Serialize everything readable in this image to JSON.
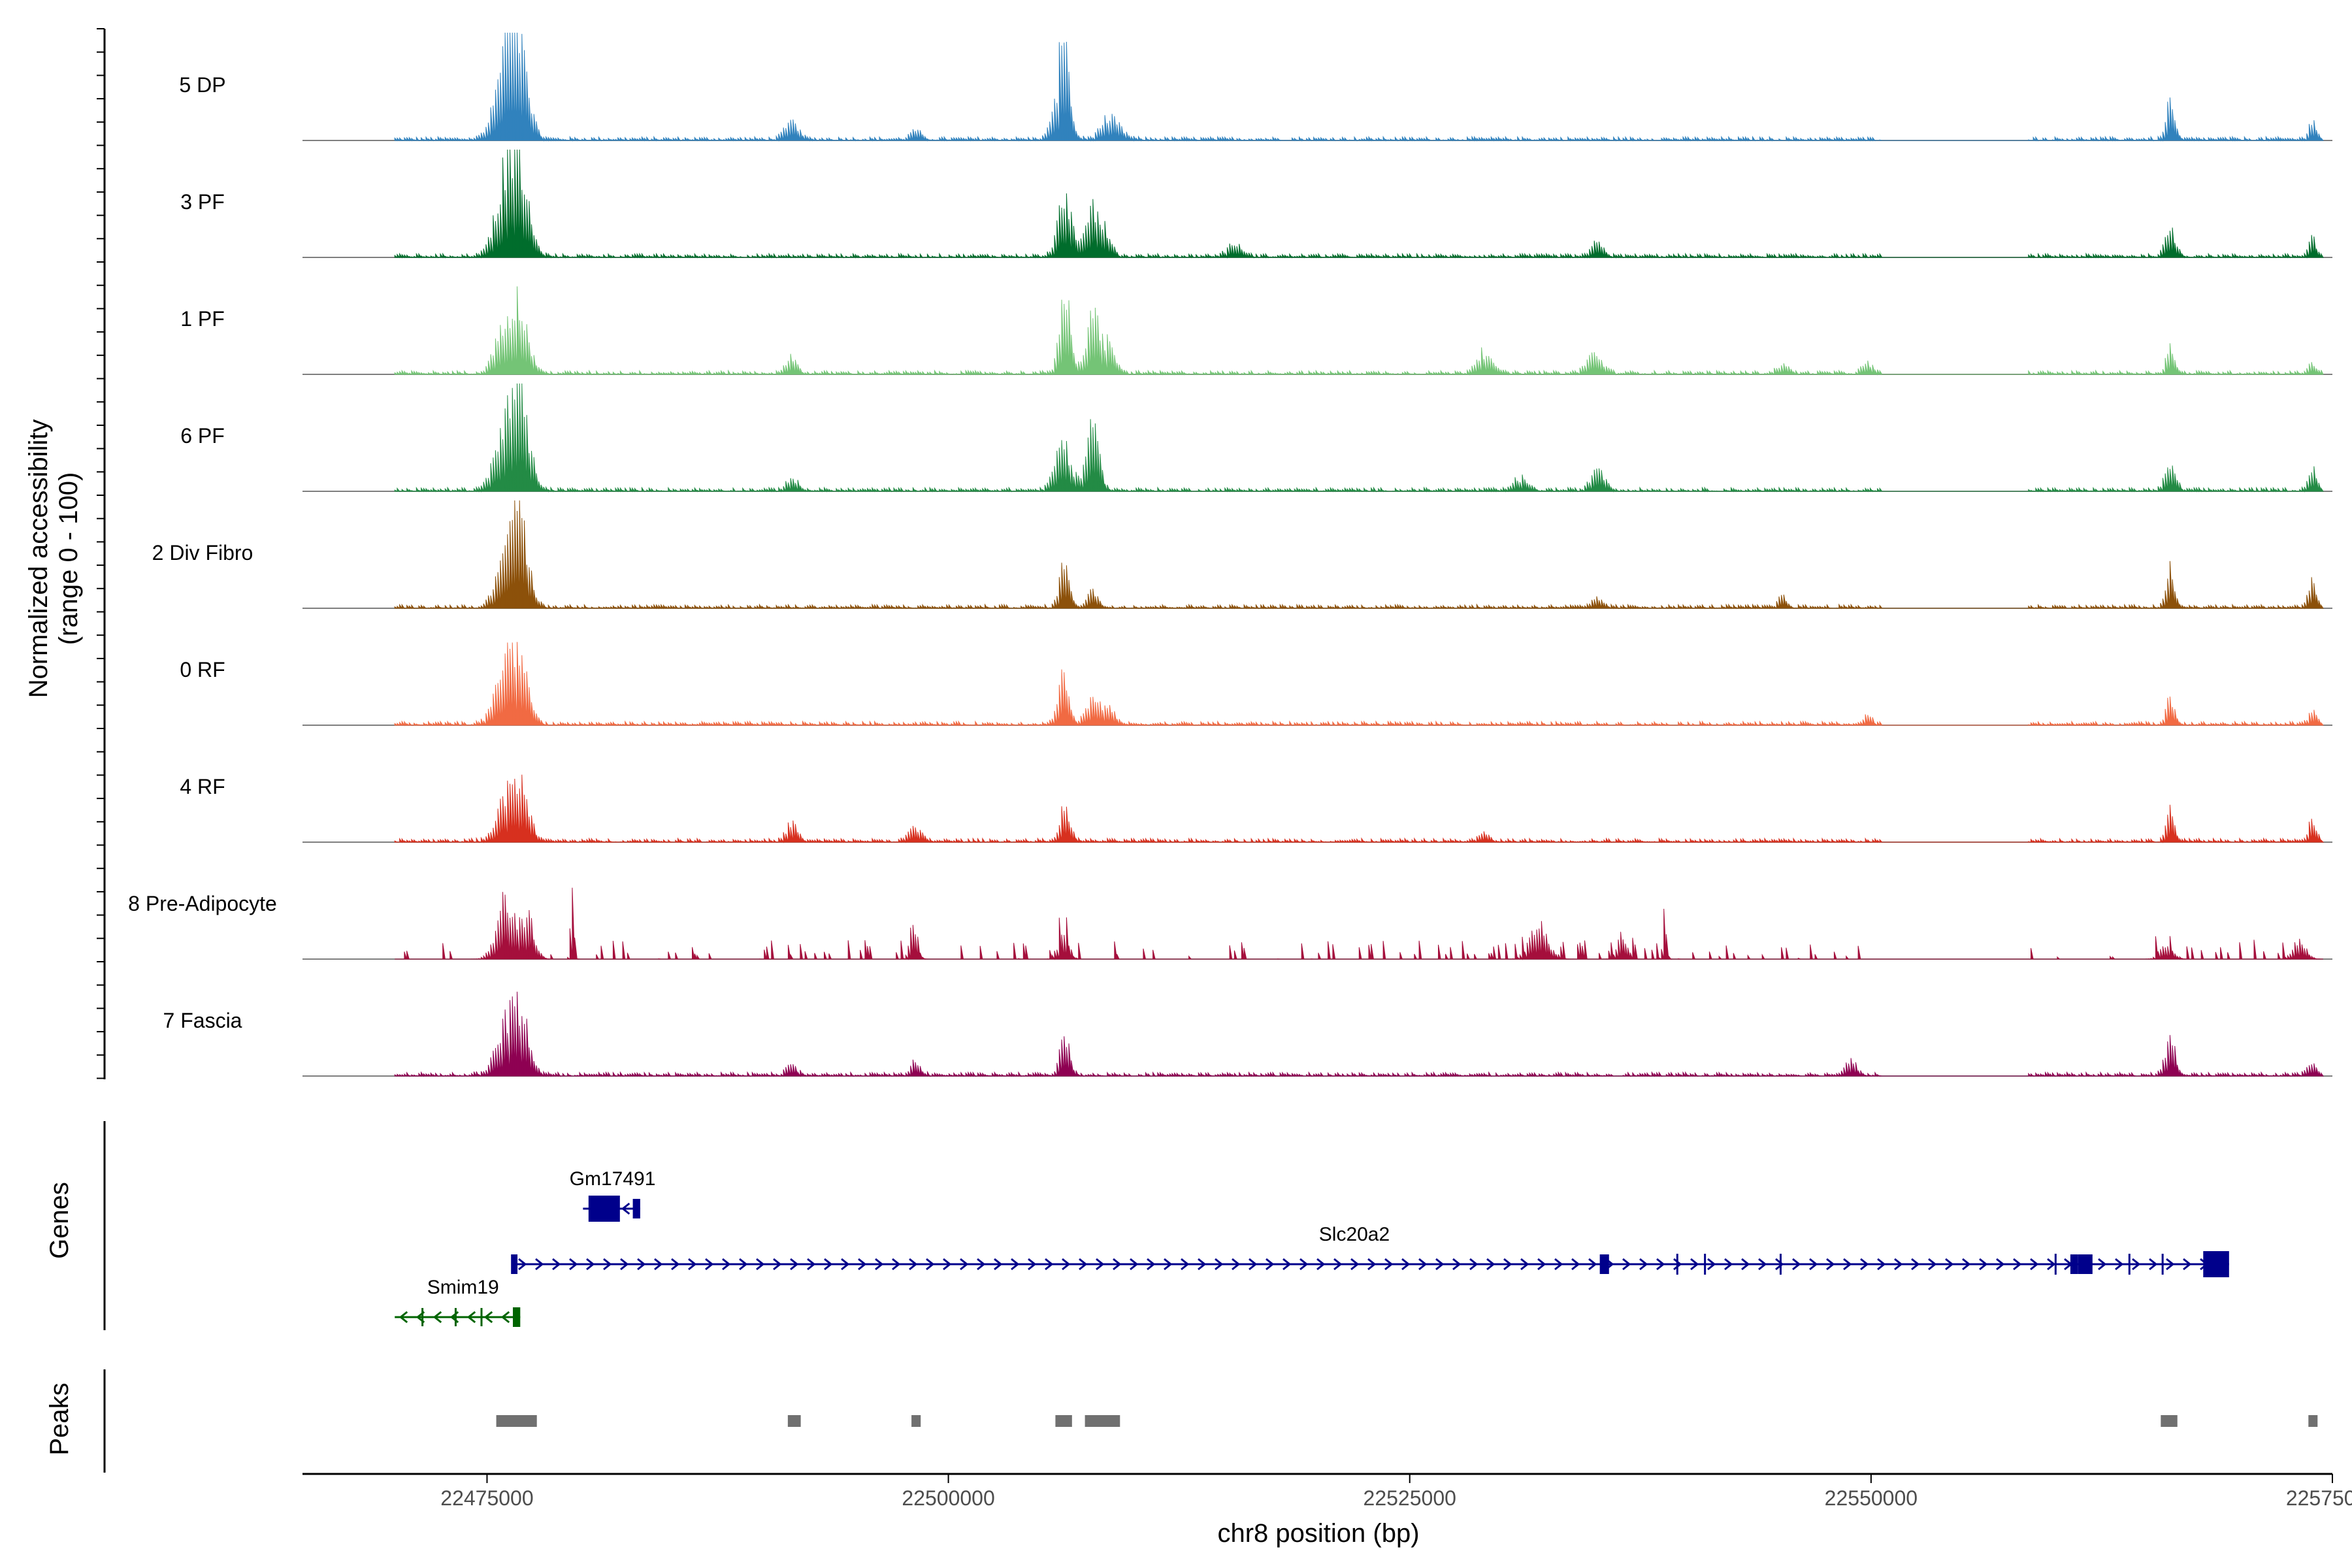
{
  "chart_data": {
    "type": "area",
    "title": "",
    "ylabel_line1": "Normalized accessibility",
    "ylabel_line2": "(range 0 - 100)",
    "xlabel": "chr8 position (bp)",
    "xlim": [
      22465000,
      22575000
    ],
    "x_ticks": [
      22475000,
      22500000,
      22525000,
      22550000,
      22575000
    ],
    "x_tick_labels": [
      "22475000",
      "22500000",
      "22525000",
      "22550000",
      "22575000"
    ],
    "tracks": [
      {
        "name": "5 DP",
        "color": "#3182bd",
        "peaks": [
          [
            22476200,
            1.0,
            900
          ],
          [
            22476700,
            0.55,
            700
          ],
          [
            22491500,
            0.22,
            500
          ],
          [
            22498200,
            0.1,
            400
          ],
          [
            22506100,
            0.5,
            600
          ],
          [
            22506300,
            1.0,
            300
          ],
          [
            22508800,
            0.25,
            700
          ],
          [
            22566200,
            0.52,
            300
          ],
          [
            22573900,
            0.22,
            300
          ]
        ]
      },
      {
        "name": "3 PF",
        "color": "#006d2c",
        "peaks": [
          [
            22476200,
            1.0,
            900
          ],
          [
            22476800,
            0.45,
            700
          ],
          [
            22506300,
            0.72,
            500
          ],
          [
            22507800,
            0.58,
            500
          ],
          [
            22508600,
            0.25,
            400
          ],
          [
            22515500,
            0.12,
            600
          ],
          [
            22535200,
            0.2,
            400
          ],
          [
            22566200,
            0.35,
            400
          ],
          [
            22573900,
            0.2,
            300
          ]
        ]
      },
      {
        "name": "1 PF",
        "color": "#74c476",
        "peaks": [
          [
            22476100,
            0.65,
            800
          ],
          [
            22476900,
            0.45,
            600
          ],
          [
            22491500,
            0.18,
            400
          ],
          [
            22506300,
            1.0,
            400
          ],
          [
            22507800,
            0.7,
            500
          ],
          [
            22508700,
            0.3,
            500
          ],
          [
            22529000,
            0.25,
            600
          ],
          [
            22535000,
            0.22,
            600
          ],
          [
            22545200,
            0.12,
            400
          ],
          [
            22549800,
            0.12,
            400
          ],
          [
            22566200,
            0.3,
            300
          ],
          [
            22573900,
            0.12,
            300
          ]
        ]
      },
      {
        "name": "6 PF",
        "color": "#238b45",
        "peaks": [
          [
            22476200,
            0.85,
            900
          ],
          [
            22476800,
            0.6,
            700
          ],
          [
            22491500,
            0.15,
            400
          ],
          [
            22506200,
            0.55,
            600
          ],
          [
            22507800,
            0.7,
            500
          ],
          [
            22531000,
            0.15,
            500
          ],
          [
            22535200,
            0.25,
            500
          ],
          [
            22566200,
            0.28,
            400
          ],
          [
            22573900,
            0.28,
            300
          ]
        ]
      },
      {
        "name": "2 Div Fibro",
        "color": "#8c510a",
        "peaks": [
          [
            22476300,
            1.0,
            800
          ],
          [
            22476900,
            0.45,
            600
          ],
          [
            22506300,
            0.5,
            400
          ],
          [
            22507800,
            0.18,
            400
          ],
          [
            22535200,
            0.1,
            400
          ],
          [
            22545200,
            0.15,
            300
          ],
          [
            22566200,
            0.45,
            300
          ],
          [
            22573900,
            0.3,
            300
          ]
        ]
      },
      {
        "name": "0 RF",
        "color": "#f16a43",
        "peaks": [
          [
            22476100,
            0.78,
            800
          ],
          [
            22476900,
            0.45,
            600
          ],
          [
            22506200,
            0.52,
            400
          ],
          [
            22507800,
            0.3,
            500
          ],
          [
            22508700,
            0.2,
            400
          ],
          [
            22549800,
            0.1,
            300
          ],
          [
            22566200,
            0.32,
            300
          ],
          [
            22573900,
            0.15,
            300
          ]
        ]
      },
      {
        "name": "4 RF",
        "color": "#d7301f",
        "peaks": [
          [
            22476200,
            0.58,
            800
          ],
          [
            22476900,
            0.4,
            600
          ],
          [
            22491500,
            0.22,
            400
          ],
          [
            22498200,
            0.15,
            500
          ],
          [
            22506300,
            0.38,
            400
          ],
          [
            22529000,
            0.08,
            400
          ],
          [
            22566200,
            0.4,
            300
          ],
          [
            22573900,
            0.22,
            300
          ]
        ]
      },
      {
        "name": "8 Pre-Adipocyte",
        "color": "#a50f3c",
        "peaks": [
          [
            22476000,
            0.62,
            700
          ],
          [
            22477200,
            0.5,
            500
          ],
          [
            22479600,
            1.0,
            120
          ],
          [
            22498100,
            0.4,
            300
          ],
          [
            22506200,
            0.3,
            400
          ],
          [
            22532000,
            0.38,
            700
          ],
          [
            22536500,
            0.28,
            400
          ],
          [
            22538800,
            0.52,
            150
          ],
          [
            22566000,
            0.18,
            500
          ],
          [
            22573200,
            0.2,
            500
          ]
        ]
      },
      {
        "name": "7 Fascia",
        "color": "#8e0152",
        "peaks": [
          [
            22476200,
            0.62,
            900
          ],
          [
            22476900,
            0.4,
            600
          ],
          [
            22491500,
            0.12,
            400
          ],
          [
            22498200,
            0.15,
            400
          ],
          [
            22506300,
            0.38,
            400
          ],
          [
            22548900,
            0.15,
            500
          ],
          [
            22566200,
            0.38,
            400
          ],
          [
            22573900,
            0.12,
            400
          ]
        ]
      }
    ],
    "genes": [
      {
        "name": "Gm17491",
        "start": 22480200,
        "end": 22483300,
        "strand": "-",
        "color": "#00008b",
        "exons": [
          [
            22480500,
            22482200
          ],
          [
            22482900,
            22483300
          ]
        ]
      },
      {
        "name": "Slc20a2",
        "start": 22476400,
        "end": 22569400,
        "strand": "+",
        "color": "#00008b",
        "exons": [
          [
            22476300,
            22476650
          ],
          [
            22535300,
            22535800
          ],
          [
            22560800,
            22561200
          ],
          [
            22561200,
            22562000
          ],
          [
            22568000,
            22569400
          ]
        ]
      },
      {
        "name": "Smim19",
        "start": 22470000,
        "end": 22476800,
        "strand": "-",
        "color": "#006400",
        "exons": [
          [
            22476400,
            22476800
          ]
        ]
      }
    ],
    "peak_regions": [
      [
        22475500,
        22477700
      ],
      [
        22491300,
        22492000
      ],
      [
        22498000,
        22498500
      ],
      [
        22505800,
        22506700
      ],
      [
        22507400,
        22509300
      ],
      [
        22565700,
        22566600
      ],
      [
        22573700,
        22574100
      ]
    ],
    "side_labels": {
      "genes": "Genes",
      "peaks": "Peaks"
    },
    "gene_color": "#00008b",
    "neg_gene_color": "#006400",
    "peak_color": "#707070"
  }
}
